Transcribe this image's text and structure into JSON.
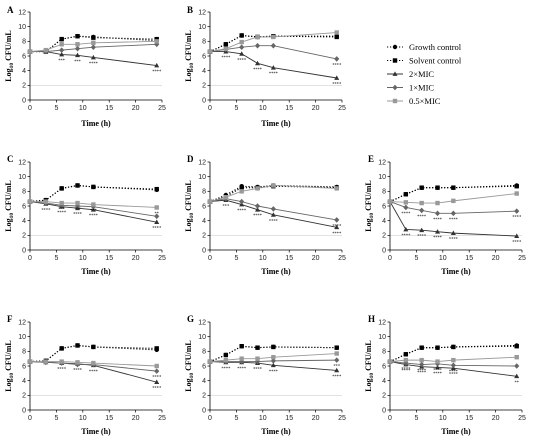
{
  "chart_data": [
    {
      "type": "line",
      "panel": "A",
      "x": [
        0,
        3,
        6,
        9,
        12,
        24
      ],
      "xlabel": "Time (h)",
      "ylabel": "Log10 CFU/mL",
      "xlim": [
        0,
        25
      ],
      "ylim": [
        0,
        12
      ],
      "xticks": [
        0,
        5,
        10,
        15,
        20,
        25
      ],
      "yticks": [
        0,
        2,
        4,
        6,
        8,
        10,
        12
      ],
      "detection_limit": 2,
      "series": [
        {
          "name": "Growth control",
          "values": [
            6.6,
            6.6,
            8.3,
            8.7,
            8.6,
            8.1
          ]
        },
        {
          "name": "Solvent control",
          "values": [
            6.6,
            6.6,
            8.3,
            8.7,
            8.5,
            8.3
          ]
        },
        {
          "name": "2×MIC",
          "values": [
            6.6,
            6.6,
            6.2,
            6.1,
            5.8,
            4.7
          ]
        },
        {
          "name": "1×MIC",
          "values": [
            6.6,
            6.6,
            6.8,
            7.0,
            7.2,
            7.6
          ]
        },
        {
          "name": "0.5×MIC",
          "values": [
            6.6,
            6.8,
            7.6,
            7.6,
            7.8,
            8.0
          ]
        }
      ],
      "annotations": [
        {
          "x": 6,
          "y": 6.2,
          "text": "***"
        },
        {
          "x": 9,
          "y": 6.1,
          "text": "***"
        },
        {
          "x": 12,
          "y": 5.8,
          "text": "****"
        },
        {
          "x": 24,
          "y": 4.7,
          "text": "****"
        }
      ]
    },
    {
      "type": "line",
      "panel": "B",
      "x": [
        0,
        3,
        6,
        9,
        12,
        24
      ],
      "xlabel": "Time (h)",
      "ylabel": "Log10 CFU/mL",
      "xlim": [
        0,
        25
      ],
      "ylim": [
        0,
        12
      ],
      "xticks": [
        0,
        5,
        10,
        15,
        20,
        25
      ],
      "yticks": [
        0,
        2,
        4,
        6,
        8,
        10,
        12
      ],
      "detection_limit": 2,
      "series": [
        {
          "name": "Growth control",
          "values": [
            6.6,
            7.6,
            8.8,
            8.6,
            8.7,
            8.7
          ]
        },
        {
          "name": "Solvent control",
          "values": [
            6.6,
            7.6,
            8.8,
            8.6,
            8.7,
            8.6
          ]
        },
        {
          "name": "2×MIC",
          "values": [
            6.6,
            6.6,
            6.3,
            5.0,
            4.4,
            3.0
          ]
        },
        {
          "name": "1×MIC",
          "values": [
            6.6,
            6.9,
            7.2,
            7.4,
            7.4,
            5.6
          ]
        },
        {
          "name": "0.5×MIC",
          "values": [
            6.6,
            7.0,
            7.9,
            8.6,
            8.6,
            9.2
          ]
        }
      ],
      "annotations": [
        {
          "x": 3,
          "y": 6.6,
          "text": "****"
        },
        {
          "x": 6,
          "y": 6.3,
          "text": "****"
        },
        {
          "x": 9,
          "y": 5.0,
          "text": "****"
        },
        {
          "x": 12,
          "y": 4.4,
          "text": "****"
        },
        {
          "x": 24,
          "y": 3.0,
          "text": "****"
        },
        {
          "x": 24,
          "y": 5.6,
          "text": "****"
        }
      ]
    },
    {
      "type": "line",
      "panel": "C",
      "x": [
        0,
        3,
        6,
        9,
        12,
        24
      ],
      "xlabel": "Time (h)",
      "ylabel": "Log10 CFU/mL",
      "xlim": [
        0,
        25
      ],
      "ylim": [
        0,
        12
      ],
      "xticks": [
        0,
        5,
        10,
        15,
        20,
        25
      ],
      "yticks": [
        0,
        2,
        4,
        6,
        8,
        10,
        12
      ],
      "detection_limit": 2,
      "series": [
        {
          "name": "Growth control",
          "values": [
            6.6,
            6.8,
            8.4,
            8.8,
            8.6,
            8.2
          ]
        },
        {
          "name": "Solvent control",
          "values": [
            6.6,
            6.8,
            8.4,
            8.8,
            8.6,
            8.3
          ]
        },
        {
          "name": "2×MIC",
          "values": [
            6.6,
            6.3,
            5.9,
            5.7,
            5.5,
            3.8
          ]
        },
        {
          "name": "1×MIC",
          "values": [
            6.6,
            6.4,
            6.1,
            6.0,
            5.9,
            4.6
          ]
        },
        {
          "name": "0.5×MIC",
          "values": [
            6.6,
            6.6,
            6.4,
            6.4,
            6.2,
            5.8
          ]
        }
      ],
      "annotations": [
        {
          "x": 3,
          "y": 6.3,
          "text": "****"
        },
        {
          "x": 6,
          "y": 5.9,
          "text": "****"
        },
        {
          "x": 9,
          "y": 5.7,
          "text": "****"
        },
        {
          "x": 12,
          "y": 5.5,
          "text": "****"
        },
        {
          "x": 24,
          "y": 3.8,
          "text": "****"
        },
        {
          "x": 6,
          "y": 6.4,
          "text": "***"
        },
        {
          "x": 9,
          "y": 6.4,
          "text": "***"
        },
        {
          "x": 12,
          "y": 6.2,
          "text": "***"
        },
        {
          "x": 24,
          "y": 5.8,
          "text": "**"
        }
      ]
    },
    {
      "type": "line",
      "panel": "D",
      "x": [
        0,
        3,
        6,
        9,
        12,
        24
      ],
      "xlabel": "Time (h)",
      "ylabel": "Log10 CFU/mL",
      "xlim": [
        0,
        25
      ],
      "ylim": [
        0,
        12
      ],
      "xticks": [
        0,
        5,
        10,
        15,
        20,
        25
      ],
      "yticks": [
        0,
        2,
        4,
        6,
        8,
        10,
        12
      ],
      "detection_limit": 2,
      "series": [
        {
          "name": "Growth control",
          "values": [
            6.6,
            7.5,
            8.7,
            8.6,
            8.8,
            8.6
          ]
        },
        {
          "name": "Solvent control",
          "values": [
            6.6,
            7.3,
            8.5,
            8.5,
            8.7,
            8.5
          ]
        },
        {
          "name": "2×MIC",
          "values": [
            6.6,
            6.8,
            6.2,
            5.5,
            4.8,
            3.1
          ]
        },
        {
          "name": "1×MIC",
          "values": [
            6.6,
            7.0,
            6.6,
            6.0,
            5.6,
            4.1
          ]
        },
        {
          "name": "0.5×MIC",
          "values": [
            6.6,
            7.2,
            8.0,
            8.4,
            8.8,
            8.4
          ]
        }
      ],
      "annotations": [
        {
          "x": 3,
          "y": 6.8,
          "text": "***"
        },
        {
          "x": 6,
          "y": 6.2,
          "text": "****"
        },
        {
          "x": 9,
          "y": 5.5,
          "text": "****"
        },
        {
          "x": 12,
          "y": 4.8,
          "text": "****"
        },
        {
          "x": 24,
          "y": 3.1,
          "text": "****"
        },
        {
          "x": 24,
          "y": 4.1,
          "text": "****"
        }
      ]
    },
    {
      "type": "line",
      "panel": "E",
      "x": [
        0,
        3,
        6,
        9,
        12,
        24
      ],
      "xlabel": "Time (h)",
      "ylabel": "Log10 CFU/mL",
      "xlim": [
        0,
        25
      ],
      "ylim": [
        0,
        12
      ],
      "xticks": [
        0,
        5,
        10,
        15,
        20,
        25
      ],
      "yticks": [
        0,
        2,
        4,
        6,
        8,
        10,
        12
      ],
      "detection_limit": 2,
      "series": [
        {
          "name": "Growth control",
          "values": [
            6.6,
            7.6,
            8.5,
            8.5,
            8.5,
            8.8
          ]
        },
        {
          "name": "Solvent control",
          "values": [
            6.6,
            7.6,
            8.5,
            8.5,
            8.5,
            8.7
          ]
        },
        {
          "name": "2×MIC",
          "values": [
            6.6,
            2.8,
            2.7,
            2.5,
            2.3,
            1.9
          ]
        },
        {
          "name": "1×MIC",
          "values": [
            6.6,
            5.8,
            5.4,
            5.0,
            5.0,
            5.3
          ]
        },
        {
          "name": "0.5×MIC",
          "values": [
            6.6,
            6.5,
            6.4,
            6.4,
            6.7,
            7.7
          ]
        }
      ],
      "annotations": [
        {
          "x": 3,
          "y": 2.8,
          "text": "****"
        },
        {
          "x": 6,
          "y": 2.7,
          "text": "****"
        },
        {
          "x": 9,
          "y": 2.5,
          "text": "****"
        },
        {
          "x": 12,
          "y": 2.3,
          "text": "****"
        },
        {
          "x": 24,
          "y": 1.9,
          "text": "****"
        },
        {
          "x": 3,
          "y": 5.8,
          "text": "****"
        },
        {
          "x": 6,
          "y": 5.4,
          "text": "****"
        },
        {
          "x": 9,
          "y": 5.0,
          "text": "****"
        },
        {
          "x": 12,
          "y": 5.0,
          "text": "****"
        },
        {
          "x": 24,
          "y": 5.3,
          "text": "****"
        }
      ]
    },
    {
      "type": "line",
      "panel": "F",
      "x": [
        0,
        3,
        6,
        9,
        12,
        24
      ],
      "xlabel": "Time (h)",
      "ylabel": "Log10 CFU/mL",
      "xlim": [
        0,
        25
      ],
      "ylim": [
        0,
        12
      ],
      "xticks": [
        0,
        5,
        10,
        15,
        20,
        25
      ],
      "yticks": [
        0,
        2,
        4,
        6,
        8,
        10,
        12
      ],
      "detection_limit": 2,
      "series": [
        {
          "name": "Growth control",
          "values": [
            6.6,
            6.7,
            8.4,
            8.8,
            8.6,
            8.2
          ]
        },
        {
          "name": "Solvent control",
          "values": [
            6.6,
            6.7,
            8.4,
            8.8,
            8.6,
            8.4
          ]
        },
        {
          "name": "2×MIC",
          "values": [
            6.6,
            6.5,
            6.4,
            6.3,
            6.1,
            3.8
          ]
        },
        {
          "name": "1×MIC",
          "values": [
            6.6,
            6.5,
            6.4,
            6.2,
            6.2,
            5.3
          ]
        },
        {
          "name": "0.5×MIC",
          "values": [
            6.6,
            6.6,
            6.6,
            6.5,
            6.4,
            6.0
          ]
        }
      ],
      "annotations": [
        {
          "x": 6,
          "y": 6.4,
          "text": "****"
        },
        {
          "x": 9,
          "y": 6.3,
          "text": "****"
        },
        {
          "x": 12,
          "y": 6.1,
          "text": "****"
        },
        {
          "x": 24,
          "y": 3.8,
          "text": "****"
        },
        {
          "x": 24,
          "y": 5.3,
          "text": "****"
        }
      ]
    },
    {
      "type": "line",
      "panel": "G",
      "x": [
        0,
        3,
        6,
        9,
        12,
        24
      ],
      "xlabel": "Time (h)",
      "ylabel": "Log10 CFU/mL",
      "xlim": [
        0,
        25
      ],
      "ylim": [
        0,
        12
      ],
      "xticks": [
        0,
        5,
        10,
        15,
        20,
        25
      ],
      "yticks": [
        0,
        2,
        4,
        6,
        8,
        10,
        12
      ],
      "detection_limit": 2,
      "series": [
        {
          "name": "Growth control",
          "values": [
            6.6,
            7.5,
            8.7,
            8.5,
            8.6,
            8.5
          ]
        },
        {
          "name": "Solvent control",
          "values": [
            6.6,
            7.5,
            8.7,
            8.5,
            8.6,
            8.5
          ]
        },
        {
          "name": "2×MIC",
          "values": [
            6.6,
            6.5,
            6.5,
            6.4,
            6.1,
            5.4
          ]
        },
        {
          "name": "1×MIC",
          "values": [
            6.6,
            6.6,
            6.6,
            6.6,
            6.7,
            6.8
          ]
        },
        {
          "name": "0.5×MIC",
          "values": [
            6.6,
            6.8,
            7.0,
            7.0,
            7.2,
            7.7
          ]
        }
      ],
      "annotations": [
        {
          "x": 3,
          "y": 6.5,
          "text": "****"
        },
        {
          "x": 6,
          "y": 6.5,
          "text": "****"
        },
        {
          "x": 9,
          "y": 6.4,
          "text": "****"
        },
        {
          "x": 12,
          "y": 6.1,
          "text": "****"
        },
        {
          "x": 24,
          "y": 5.4,
          "text": "****"
        },
        {
          "x": 24,
          "y": 6.8,
          "text": "***"
        }
      ]
    },
    {
      "type": "line",
      "panel": "H",
      "x": [
        0,
        3,
        6,
        9,
        12,
        24
      ],
      "xlabel": "Time (h)",
      "ylabel": "Log10 CFU/mL",
      "xlim": [
        0,
        25
      ],
      "ylim": [
        0,
        12
      ],
      "xticks": [
        0,
        5,
        10,
        15,
        20,
        25
      ],
      "yticks": [
        0,
        2,
        4,
        6,
        8,
        10,
        12
      ],
      "detection_limit": 2,
      "series": [
        {
          "name": "Growth control",
          "values": [
            6.6,
            7.6,
            8.5,
            8.5,
            8.6,
            8.8
          ]
        },
        {
          "name": "Solvent control",
          "values": [
            6.6,
            7.6,
            8.5,
            8.5,
            8.6,
            8.7
          ]
        },
        {
          "name": "2×MIC",
          "values": [
            6.6,
            6.2,
            5.9,
            5.8,
            5.7,
            4.6
          ]
        },
        {
          "name": "1×MIC",
          "values": [
            6.6,
            6.4,
            6.2,
            6.3,
            6.1,
            6.0
          ]
        },
        {
          "name": "0.5×MIC",
          "values": [
            6.6,
            6.8,
            6.8,
            6.6,
            6.8,
            7.2
          ]
        }
      ],
      "annotations": [
        {
          "x": 3,
          "y": 6.2,
          "text": "****"
        },
        {
          "x": 6,
          "y": 5.9,
          "text": "****"
        },
        {
          "x": 9,
          "y": 5.8,
          "text": "****"
        },
        {
          "x": 12,
          "y": 5.7,
          "text": "****"
        },
        {
          "x": 24,
          "y": 4.6,
          "text": "**"
        },
        {
          "x": 3,
          "y": 6.4,
          "text": "****"
        },
        {
          "x": 6,
          "y": 6.2,
          "text": "****"
        },
        {
          "x": 9,
          "y": 6.3,
          "text": "****"
        },
        {
          "x": 12,
          "y": 6.1,
          "text": "****"
        }
      ]
    }
  ],
  "legend": {
    "placement": "right of row 1",
    "entries": [
      {
        "name": "Growth control",
        "marker": "circle",
        "color": "#000000",
        "line": "dotted"
      },
      {
        "name": "Solvent control",
        "marker": "square",
        "color": "#000000",
        "line": "dotted"
      },
      {
        "name": "2×MIC",
        "marker": "triangle",
        "color": "#333333",
        "line": "solid"
      },
      {
        "name": "1×MIC",
        "marker": "diamond",
        "color": "#666666",
        "line": "solid"
      },
      {
        "name": "0.5×MIC",
        "marker": "square",
        "color": "#999999",
        "line": "solid"
      }
    ]
  },
  "colors": {
    "growth": "#000000",
    "solvent": "#000000",
    "mic2": "#333333",
    "mic1": "#666666",
    "mic05": "#999999",
    "limit": "#cfcfcf"
  }
}
